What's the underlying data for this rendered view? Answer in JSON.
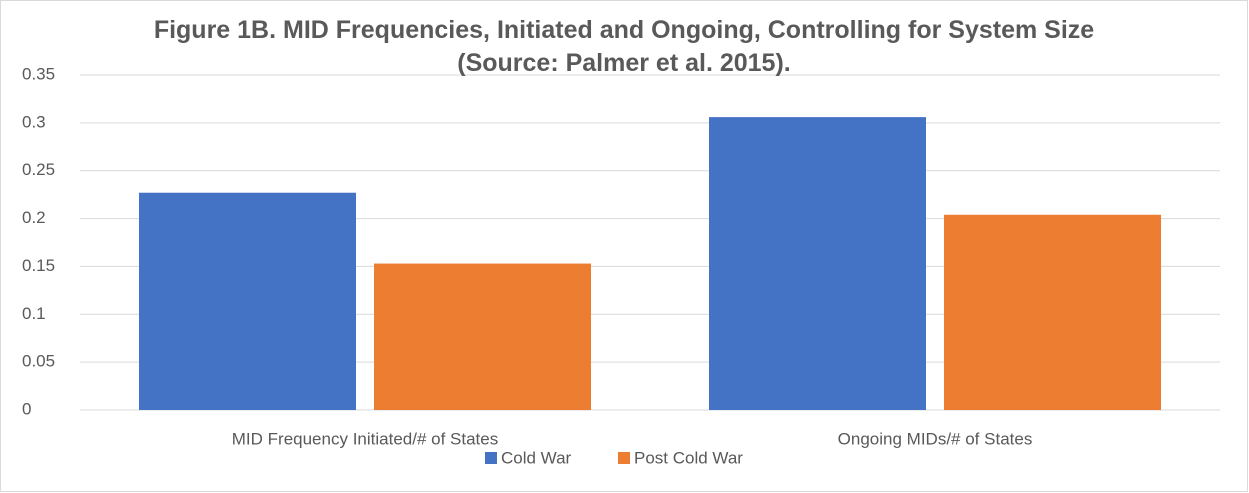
{
  "chart_data": {
    "type": "bar",
    "title": "Figure 1B. MID Frequencies, Initiated and Ongoing, Controlling for System Size (Source: Palmer et al. 2015).",
    "categories": [
      "MID Frequency Initiated/# of States",
      "Ongoing MIDs/# of States"
    ],
    "series": [
      {
        "name": "Cold War",
        "color": "#4472c4",
        "values": [
          0.227,
          0.306
        ]
      },
      {
        "name": "Post Cold War",
        "color": "#ed7d31",
        "values": [
          0.153,
          0.204
        ]
      }
    ],
    "ylim": [
      0,
      0.35
    ],
    "yticks": [
      0,
      0.05,
      0.1,
      0.15,
      0.2,
      0.25,
      0.3,
      0.35
    ],
    "grid": true,
    "legend": "bottom"
  }
}
